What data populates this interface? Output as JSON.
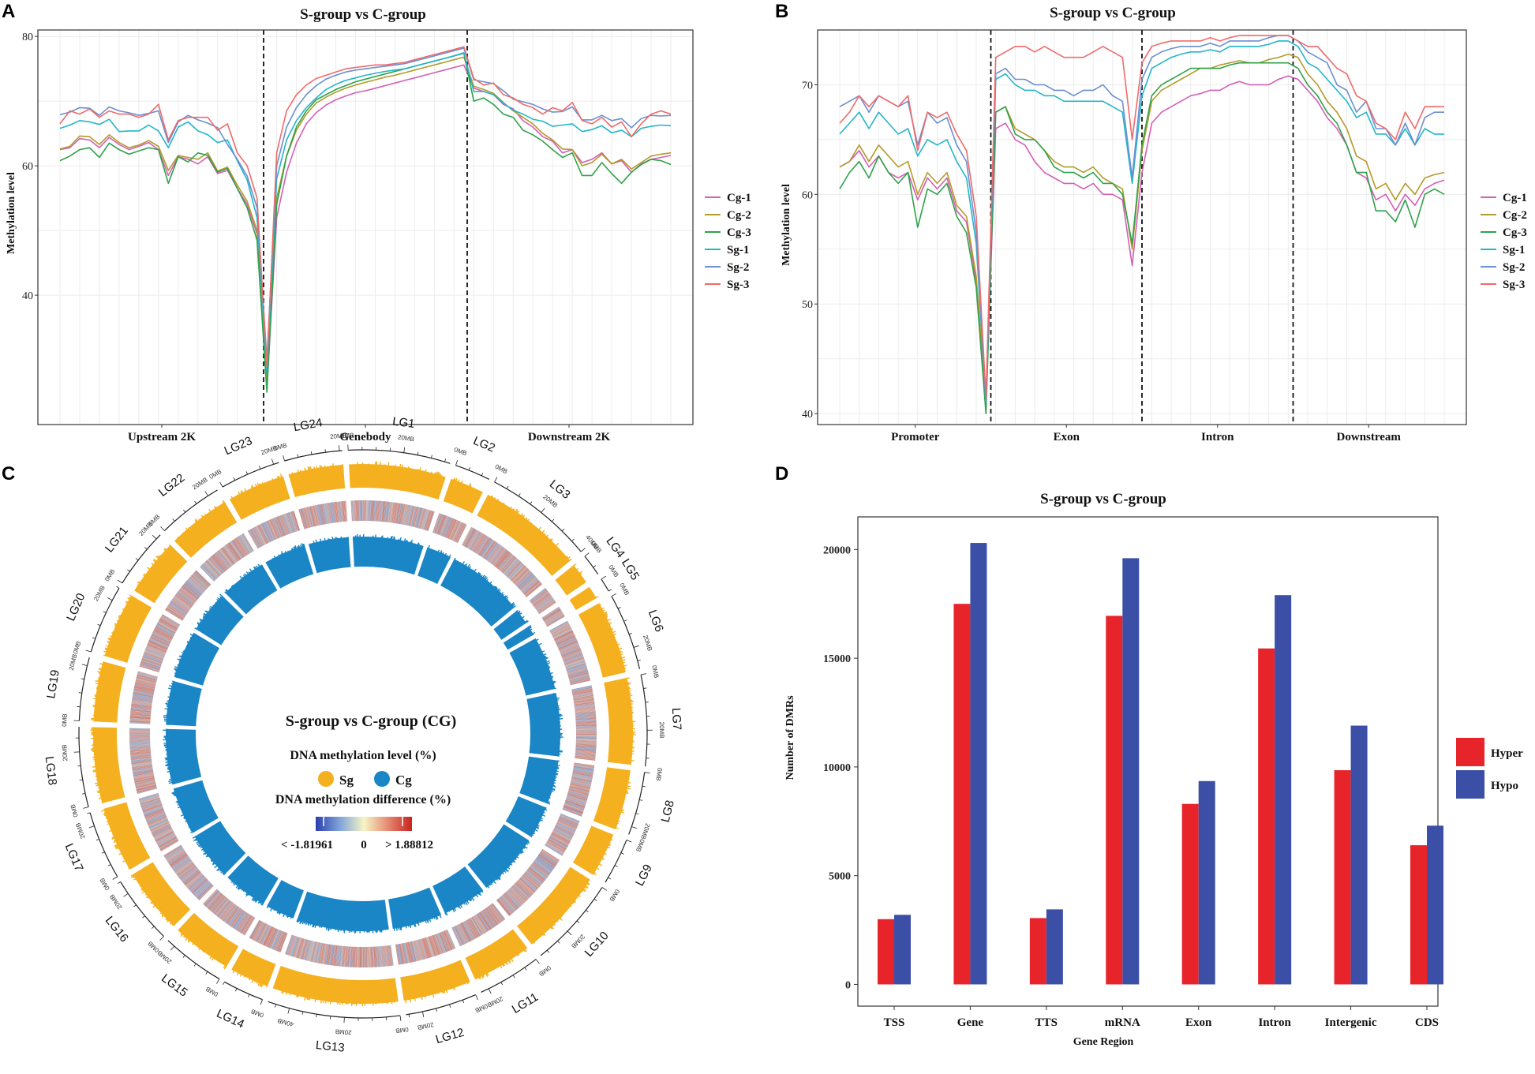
{
  "chart_data": [
    {
      "panel": "A",
      "type": "line",
      "title": "S-group vs C-group",
      "ylabel": "Methylation level",
      "xlabel": "",
      "ylim": [
        20,
        81
      ],
      "yticks": [
        40,
        60,
        80
      ],
      "regions": [
        "Upstream 2K",
        "Genebody",
        "Downstream 2K"
      ],
      "grid": true,
      "legend": "right",
      "series": [
        {
          "name": "Cg-1",
          "color": "#d45fb5",
          "values": [
            62.5,
            62.8,
            64.2,
            64.0,
            62.8,
            64.4,
            63.3,
            62.5,
            63.0,
            63.6,
            62.5,
            58.5,
            61.4,
            61.0,
            60.3,
            61.4,
            58.8,
            59.3,
            56.5,
            54.0,
            49.5,
            25.5,
            52.0,
            59.0,
            63.5,
            66.5,
            68.2,
            69.4,
            70.2,
            70.8,
            71.3,
            71.6,
            72.0,
            72.4,
            72.8,
            73.2,
            73.6,
            74.0,
            74.4,
            74.8,
            75.2,
            75.6,
            72.0,
            71.5,
            71.0,
            69.5,
            68.8,
            67.0,
            66.0,
            64.5,
            63.8,
            62.0,
            62.5,
            60.5,
            61.0,
            62.0,
            60.3,
            60.8,
            59.0,
            60.3,
            61.0,
            61.3,
            61.6
          ]
        },
        {
          "name": "Cg-2",
          "color": "#b49a2a",
          "values": [
            62.6,
            63.0,
            64.6,
            64.5,
            63.3,
            64.8,
            63.6,
            62.8,
            63.2,
            63.9,
            63.0,
            59.3,
            61.6,
            61.3,
            61.0,
            62.0,
            59.2,
            59.8,
            57.0,
            54.5,
            50.0,
            27.0,
            55.0,
            61.5,
            65.5,
            68.0,
            69.7,
            70.6,
            71.4,
            72.0,
            72.5,
            72.9,
            73.3,
            73.7,
            74.0,
            74.4,
            74.8,
            75.2,
            75.6,
            76.0,
            76.4,
            76.8,
            72.3,
            71.8,
            71.2,
            69.8,
            68.5,
            67.5,
            66.5,
            65.0,
            64.0,
            62.6,
            62.5,
            60.0,
            60.5,
            61.8,
            60.3,
            61.0,
            59.5,
            60.5,
            61.5,
            61.8,
            62.0
          ]
        },
        {
          "name": "Cg-3",
          "color": "#2fa24a",
          "values": [
            60.8,
            61.5,
            62.5,
            62.8,
            61.3,
            63.5,
            62.5,
            61.8,
            62.3,
            62.8,
            62.5,
            57.3,
            61.4,
            60.6,
            62.0,
            61.6,
            59.0,
            59.6,
            56.5,
            53.5,
            48.5,
            25.0,
            54.0,
            61.5,
            66.0,
            68.5,
            70.2,
            71.0,
            71.8,
            72.4,
            73.0,
            73.4,
            73.8,
            74.2,
            74.6,
            75.0,
            75.4,
            75.8,
            76.2,
            76.6,
            77.0,
            77.4,
            70.0,
            70.5,
            69.5,
            68.0,
            67.5,
            65.5,
            64.8,
            63.8,
            62.5,
            61.3,
            62.0,
            58.5,
            58.5,
            60.5,
            58.8,
            57.3,
            59.0,
            60.2,
            61.0,
            60.8,
            60.2
          ]
        },
        {
          "name": "Sg-1",
          "color": "#22b6c9",
          "values": [
            65.8,
            66.3,
            67.0,
            66.8,
            66.4,
            67.2,
            65.3,
            65.4,
            65.4,
            66.3,
            65.4,
            62.8,
            66.0,
            66.8,
            65.4,
            64.8,
            63.6,
            64.0,
            60.8,
            57.8,
            52.0,
            28.0,
            58.0,
            64.0,
            67.0,
            69.0,
            70.5,
            71.8,
            72.6,
            73.2,
            73.6,
            74.0,
            74.3,
            74.6,
            74.8,
            75.0,
            75.4,
            75.8,
            76.2,
            76.6,
            77.0,
            77.5,
            71.5,
            71.5,
            71.0,
            69.7,
            68.6,
            68.0,
            67.2,
            66.9,
            66.1,
            66.3,
            66.5,
            65.3,
            65.6,
            66.2,
            65.1,
            65.5,
            64.5,
            65.8,
            66.1,
            66.3,
            66.2
          ]
        },
        {
          "name": "Sg-2",
          "color": "#6b8fd0",
          "values": [
            67.9,
            68.3,
            69.0,
            68.9,
            67.8,
            69.1,
            68.5,
            68.2,
            67.8,
            68.1,
            68.5,
            63.6,
            66.8,
            67.8,
            67.1,
            66.6,
            65.9,
            63.3,
            61.0,
            58.4,
            53.5,
            30.0,
            60.0,
            66.0,
            69.0,
            71.0,
            72.4,
            73.4,
            74.0,
            74.5,
            74.8,
            75.0,
            75.2,
            75.4,
            75.6,
            75.8,
            76.2,
            76.6,
            77.0,
            77.4,
            77.8,
            78.2,
            73.3,
            73.0,
            72.7,
            71.6,
            70.3,
            69.9,
            69.5,
            68.8,
            68.3,
            68.4,
            69.1,
            67.1,
            67.1,
            67.8,
            67.0,
            67.3,
            65.9,
            67.3,
            67.8,
            67.7,
            67.8
          ]
        },
        {
          "name": "Sg-3",
          "color": "#f06a6a",
          "values": [
            66.5,
            68.5,
            68.0,
            68.8,
            67.5,
            68.5,
            68.0,
            68.0,
            67.5,
            68.0,
            69.5,
            64.0,
            67.0,
            67.5,
            67.5,
            67.5,
            65.5,
            66.5,
            62.0,
            60.0,
            55.0,
            29.0,
            62.0,
            68.5,
            71.0,
            72.5,
            73.5,
            74.0,
            74.5,
            75.0,
            75.2,
            75.4,
            75.6,
            75.6,
            75.8,
            76.0,
            76.4,
            76.8,
            77.2,
            77.6,
            78.0,
            78.4,
            73.5,
            72.5,
            72.8,
            71.0,
            70.5,
            69.5,
            69.0,
            68.0,
            69.0,
            68.5,
            69.8,
            67.0,
            66.5,
            67.5,
            66.0,
            66.8,
            64.5,
            66.5,
            68.0,
            68.5,
            68.0
          ]
        }
      ]
    },
    {
      "panel": "B",
      "type": "line",
      "title": "S-group vs C-group",
      "ylabel": "Methylation level",
      "xlabel": "",
      "ylim": [
        39,
        75
      ],
      "yticks": [
        40,
        50,
        60,
        70
      ],
      "regions": [
        "Promoter",
        "Exon",
        "Intron",
        "Downstream"
      ],
      "grid": true,
      "legend": "right",
      "series": [
        {
          "name": "Cg-1",
          "color": "#d45fb5",
          "values": [
            62.5,
            63.0,
            64.0,
            62.5,
            63.5,
            62.0,
            61.5,
            62.0,
            59.5,
            61.5,
            60.5,
            61.5,
            58.5,
            57.5,
            52.0,
            40.5,
            66.0,
            66.5,
            65.0,
            64.5,
            63.0,
            62.0,
            61.5,
            61.0,
            61.0,
            60.5,
            61.0,
            60.0,
            60.0,
            59.5,
            53.5,
            62.0,
            66.5,
            67.5,
            68.0,
            68.5,
            69.0,
            69.2,
            69.5,
            69.5,
            70.0,
            70.3,
            70.0,
            70.0,
            70.0,
            70.5,
            70.8,
            70.5,
            69.5,
            68.5,
            67.0,
            66.0,
            64.5,
            62.0,
            61.5,
            59.5,
            60.0,
            58.5,
            60.0,
            59.0,
            60.5,
            61.0,
            61.3
          ]
        },
        {
          "name": "Cg-2",
          "color": "#b49a2a",
          "values": [
            62.5,
            63.0,
            64.5,
            63.0,
            64.5,
            63.5,
            62.5,
            63.0,
            60.0,
            62.0,
            61.0,
            62.0,
            59.0,
            58.0,
            52.5,
            41.0,
            67.5,
            68.0,
            66.0,
            65.5,
            65.0,
            64.0,
            63.0,
            62.5,
            62.5,
            62.0,
            62.5,
            61.5,
            61.0,
            60.5,
            55.0,
            64.0,
            68.5,
            69.5,
            70.0,
            70.5,
            71.0,
            71.5,
            71.5,
            71.8,
            72.0,
            72.2,
            72.0,
            72.0,
            72.3,
            72.5,
            72.8,
            72.5,
            71.0,
            70.0,
            68.5,
            67.5,
            66.0,
            63.5,
            63.0,
            60.5,
            61.0,
            59.5,
            61.0,
            60.0,
            61.5,
            61.8,
            62.0
          ]
        },
        {
          "name": "Cg-3",
          "color": "#2fa24a",
          "values": [
            60.5,
            62.0,
            63.0,
            61.5,
            63.5,
            62.0,
            61.0,
            62.0,
            57.0,
            60.5,
            60.0,
            61.0,
            58.0,
            56.5,
            51.5,
            40.0,
            67.5,
            68.0,
            65.5,
            65.0,
            65.0,
            64.0,
            62.5,
            62.0,
            62.0,
            61.5,
            62.0,
            61.0,
            61.0,
            60.0,
            55.5,
            64.5,
            69.0,
            70.0,
            70.5,
            71.0,
            71.5,
            71.5,
            71.5,
            71.5,
            71.8,
            72.0,
            72.0,
            72.0,
            72.0,
            72.0,
            72.0,
            71.5,
            70.0,
            69.0,
            67.5,
            66.5,
            64.5,
            62.0,
            62.0,
            58.5,
            58.5,
            57.5,
            59.5,
            57.0,
            60.0,
            60.5,
            60.0
          ]
        },
        {
          "name": "Sg-1",
          "color": "#22b6c9",
          "values": [
            65.5,
            66.5,
            67.5,
            66.0,
            67.5,
            66.5,
            65.5,
            66.0,
            63.5,
            65.0,
            64.5,
            65.0,
            63.0,
            61.5,
            55.5,
            41.0,
            70.5,
            71.0,
            70.0,
            69.5,
            69.5,
            69.0,
            69.0,
            68.5,
            68.5,
            68.5,
            68.5,
            68.5,
            68.0,
            67.5,
            61.0,
            69.0,
            71.5,
            72.0,
            72.5,
            72.8,
            73.0,
            73.0,
            73.2,
            73.0,
            73.5,
            73.5,
            73.5,
            73.5,
            73.7,
            74.0,
            74.0,
            73.5,
            72.0,
            71.5,
            70.5,
            69.5,
            68.5,
            67.0,
            67.5,
            65.5,
            65.5,
            64.5,
            66.0,
            64.5,
            66.0,
            65.5,
            65.5
          ]
        },
        {
          "name": "Sg-2",
          "color": "#6b8fd0",
          "values": [
            68.0,
            68.5,
            69.0,
            67.5,
            69.0,
            68.5,
            68.0,
            68.5,
            64.5,
            67.5,
            66.5,
            67.0,
            64.5,
            63.0,
            56.5,
            41.0,
            71.0,
            71.5,
            70.5,
            70.5,
            70.0,
            70.0,
            69.5,
            69.5,
            69.0,
            69.5,
            69.5,
            70.0,
            69.0,
            68.5,
            61.5,
            70.5,
            72.5,
            73.0,
            73.3,
            73.5,
            73.5,
            73.5,
            73.8,
            73.5,
            74.0,
            74.0,
            74.0,
            74.0,
            74.3,
            74.5,
            74.5,
            74.0,
            73.0,
            72.5,
            72.0,
            70.0,
            69.5,
            67.5,
            68.5,
            66.0,
            66.0,
            64.5,
            66.5,
            64.5,
            67.0,
            67.5,
            67.5
          ]
        },
        {
          "name": "Sg-3",
          "color": "#f06a6a",
          "values": [
            66.5,
            67.5,
            69.0,
            68.0,
            69.0,
            68.5,
            68.0,
            69.0,
            64.0,
            67.5,
            67.0,
            67.5,
            65.5,
            64.0,
            58.0,
            41.5,
            72.5,
            73.0,
            73.5,
            73.5,
            73.0,
            73.5,
            73.0,
            72.5,
            72.5,
            72.5,
            73.0,
            73.5,
            73.0,
            72.5,
            65.0,
            72.0,
            73.5,
            73.8,
            74.0,
            74.0,
            74.0,
            74.0,
            74.3,
            74.0,
            74.3,
            74.5,
            74.5,
            74.5,
            74.5,
            74.5,
            74.5,
            74.0,
            73.5,
            73.5,
            72.5,
            71.5,
            71.0,
            69.0,
            68.5,
            66.5,
            66.0,
            65.0,
            67.5,
            66.0,
            68.0,
            68.0,
            68.0
          ]
        }
      ]
    },
    {
      "panel": "C",
      "type": "circos",
      "title": "S-group vs C-group (CG)",
      "chromosomes": [
        "LG1",
        "LG2",
        "LG3",
        "LG4",
        "LG5",
        "LG6",
        "LG7",
        "LG8",
        "LG9",
        "LG10",
        "LG11",
        "LG12",
        "LG13",
        "LG14",
        "LG15",
        "LG16",
        "LG17",
        "LG18",
        "LG19",
        "LG20",
        "LG21",
        "LG22",
        "LG23",
        "LG24"
      ],
      "chromosome_lengths_mb": [
        37,
        13,
        40,
        8,
        5,
        28,
        33,
        23,
        17,
        33,
        23,
        26,
        48,
        15,
        23,
        25,
        25,
        29,
        23,
        25,
        22,
        24,
        22,
        21
      ],
      "scale_labels": [
        "0MB",
        "20MB",
        "40MB"
      ],
      "legend_title_level": "DNA methylation level (%)",
      "legend_items": [
        {
          "label": "Sg",
          "color": "#f4b01e"
        },
        {
          "label": "Cg",
          "color": "#1a86c6"
        }
      ],
      "legend_title_diff": "DNA methylation difference (%)",
      "diff_min_label": "< -1.81961",
      "diff_mid_label": "0",
      "diff_max_label": "> 1.88812"
    },
    {
      "panel": "D",
      "type": "bar",
      "title": "S-group vs C-group",
      "xlabel": "Gene Region",
      "ylabel": "Number of DMRs",
      "ylim": [
        -1000,
        21500
      ],
      "yticks": [
        0,
        5000,
        10000,
        15000,
        20000
      ],
      "categories": [
        "TSS",
        "Gene",
        "TTS",
        "mRNA",
        "Exon",
        "Intron",
        "Intergenic",
        "CDS"
      ],
      "legend": "right",
      "series": [
        {
          "name": "Hyper",
          "color": "#e8242b",
          "values": [
            3000,
            17500,
            3050,
            16950,
            8300,
            15450,
            9850,
            6400
          ]
        },
        {
          "name": "Hypo",
          "color": "#3b4fa6",
          "values": [
            3200,
            20300,
            3450,
            19600,
            9350,
            17900,
            11900,
            7300
          ]
        }
      ]
    }
  ]
}
